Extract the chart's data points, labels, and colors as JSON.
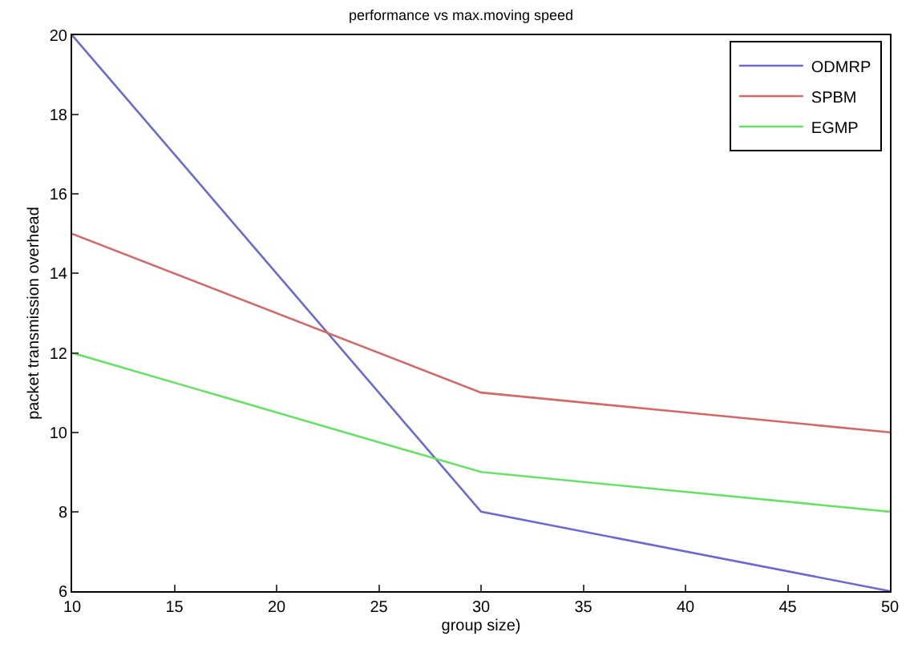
{
  "chart_data": {
    "type": "line",
    "title": "performance vs max.moving speed",
    "xlabel": "group size)",
    "ylabel": "packet transmission overhead",
    "x": [
      10,
      30,
      50
    ],
    "series": [
      {
        "name": "ODMRP",
        "color": "#6a6ad0",
        "values": [
          20,
          8,
          6
        ]
      },
      {
        "name": "SPBM",
        "color": "#d06a6a",
        "values": [
          15,
          11,
          10
        ]
      },
      {
        "name": "EGMP",
        "color": "#6ae06a",
        "values": [
          12,
          9,
          8
        ]
      }
    ],
    "xlim": [
      10,
      50
    ],
    "xticks": [
      10,
      15,
      20,
      25,
      30,
      35,
      40,
      45,
      50
    ],
    "ylim": [
      6,
      20
    ],
    "yticks": [
      6,
      8,
      10,
      12,
      14,
      16,
      18,
      20
    ],
    "legend": "top right",
    "marker": "none",
    "line_style": "solid"
  }
}
